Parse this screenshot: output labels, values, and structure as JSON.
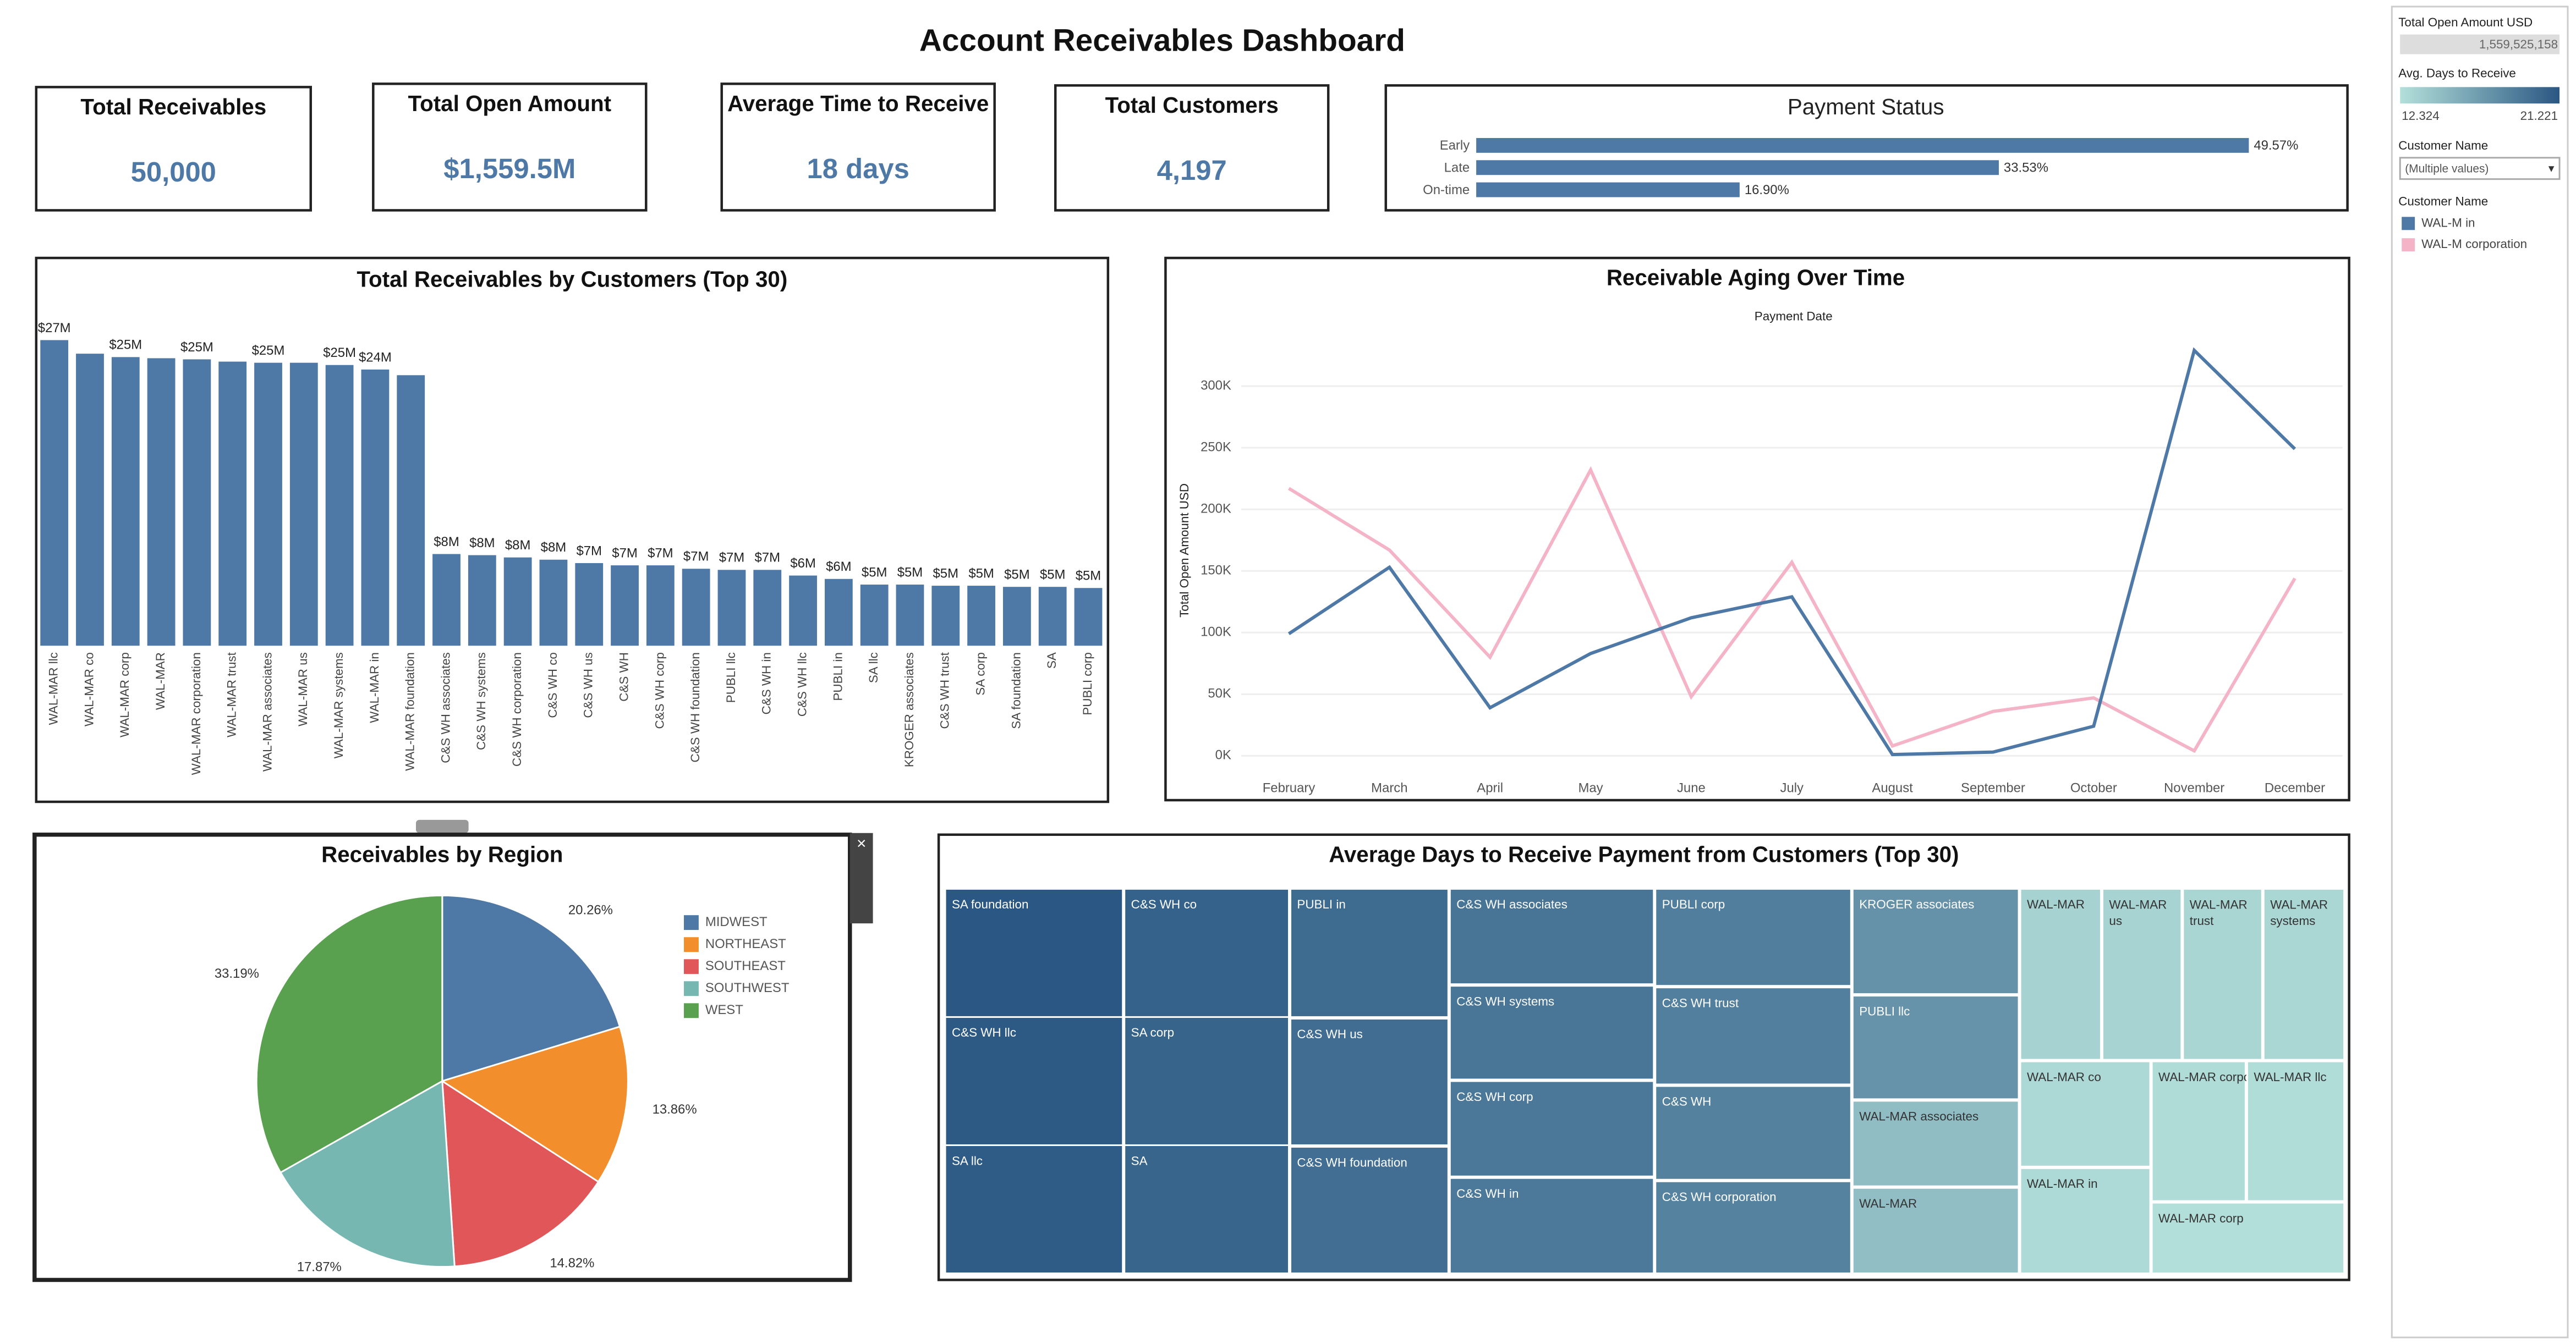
{
  "title": "Account Receivables Dashboard",
  "kpis": [
    {
      "label": "Total Receivables",
      "value": "50,000"
    },
    {
      "label": "Total Open Amount",
      "value": "$1,559.5M"
    },
    {
      "label": "Average Time to Receive",
      "value": "18 days"
    },
    {
      "label": "Total Customers",
      "value": "4,197"
    }
  ],
  "side_panel": {
    "open_amount": {
      "title": "Total Open Amount USD",
      "value": "1,559,525,158"
    },
    "days_title": "Avg. Days to Receive",
    "filter": {
      "title": "Customer Name",
      "value": "(Multiple values)"
    },
    "legend_title": "Customer Name"
  },
  "chart_data": [
    {
      "type": "bar",
      "orientation": "horizontal",
      "title": "Payment Status",
      "color": "#4e79a7",
      "categories": [
        "Early",
        "Late",
        "On-time"
      ],
      "values": [
        49.57,
        33.53,
        16.9
      ],
      "value_labels": [
        "49.57%",
        "33.53%",
        "16.90%"
      ]
    },
    {
      "type": "bar",
      "orientation": "vertical",
      "title": "Total Receivables by Customers (Top 30)",
      "color": "#4e79a7",
      "categories": [
        "WAL-MAR llc",
        "WAL-MAR co",
        "WAL-MAR corp",
        "WAL-MAR",
        "WAL-MAR corporation",
        "WAL-MAR trust",
        "WAL-MAR associates",
        "WAL-MAR us",
        "WAL-MAR systems",
        "WAL-MAR in",
        "WAL-MAR foundation",
        "C&S WH associates",
        "C&S WH systems",
        "C&S WH corporation",
        "C&S WH co",
        "C&S WH us",
        "C&S WH",
        "C&S WH corp",
        "C&S WH foundation",
        "PUBLI llc",
        "C&S WH in",
        "C&S WH llc",
        "PUBLI in",
        "SA llc",
        "KROGER associates",
        "C&S WH trust",
        "SA corp",
        "SA foundation",
        "SA",
        "PUBLI corp"
      ],
      "values": [
        27.0,
        25.8,
        25.5,
        25.4,
        25.3,
        25.1,
        25.0,
        25.0,
        24.8,
        24.4,
        23.9,
        8.1,
        8.0,
        7.8,
        7.6,
        7.3,
        7.1,
        7.1,
        6.8,
        6.7,
        6.7,
        6.2,
        5.9,
        5.4,
        5.4,
        5.3,
        5.3,
        5.2,
        5.2,
        5.1
      ],
      "value_labels": [
        "$27M",
        null,
        "$25M",
        null,
        "$25M",
        null,
        "$25M",
        null,
        "$25M",
        "$24M",
        null,
        "$8M",
        "$8M",
        "$8M",
        "$8M",
        "$7M",
        "$7M",
        "$7M",
        "$7M",
        "$7M",
        "$7M",
        "$6M",
        "$6M",
        "$5M",
        "$5M",
        "$5M",
        "$5M",
        "$5M",
        "$5M",
        "$5M"
      ]
    },
    {
      "type": "line",
      "title": "Receivable Aging Over Time",
      "subtitle": "Payment Date",
      "y_label": "Total Open Amount USD",
      "categories": [
        "February",
        "March",
        "April",
        "May",
        "June",
        "July",
        "August",
        "September",
        "October",
        "November",
        "December"
      ],
      "series": [
        {
          "name": "WAL-M corporation",
          "color": "#f4b3c6",
          "values": [
            217000,
            167000,
            80000,
            232000,
            48000,
            157000,
            8000,
            36000,
            47000,
            4000,
            144000
          ]
        },
        {
          "name": "WAL-M in",
          "color": "#4e79a7",
          "values": [
            99000,
            153000,
            39000,
            83000,
            112000,
            129000,
            1000,
            3000,
            24000,
            329000,
            249000
          ]
        }
      ],
      "ylim": [
        -10000,
        345000
      ],
      "yticks": [
        {
          "value": 0,
          "label": "0K"
        },
        {
          "value": 50000,
          "label": "50K"
        },
        {
          "value": 100000,
          "label": "100K"
        },
        {
          "value": 150000,
          "label": "150K"
        },
        {
          "value": 200000,
          "label": "200K"
        },
        {
          "value": 250000,
          "label": "250K"
        },
        {
          "value": 300000,
          "label": "300K"
        }
      ],
      "grid": true
    },
    {
      "type": "pie",
      "title": "Receivables by Region",
      "categories": [
        "MIDWEST",
        "NORTHEAST",
        "SOUTHEAST",
        "SOUTHWEST",
        "WEST"
      ],
      "values": [
        20.26,
        13.86,
        14.82,
        17.87,
        33.19
      ],
      "value_labels": [
        "20.26%",
        "13.86%",
        "14.82%",
        "17.87%",
        "33.19%"
      ],
      "colors": [
        "#4e79a7",
        "#f28e2b",
        "#e15759",
        "#76b7b2",
        "#59a14f"
      ]
    },
    {
      "type": "treemap",
      "title": "Average Days to Receive Payment from Customers (Top 30)",
      "categories": [
        "SA foundation",
        "C&S WH llc",
        "SA llc",
        "C&S WH co",
        "SA corp",
        "SA",
        "PUBLI in",
        "C&S WH us",
        "C&S WH foundation",
        "C&S WH associates",
        "C&S WH systems",
        "C&S WH corp",
        "C&S WH in",
        "PUBLI corp",
        "C&S WH trust",
        "C&S WH",
        "C&S WH corporation",
        "KROGER associates",
        "PUBLI llc",
        "WAL-MAR associates",
        "WAL-MAR",
        "WAL-MAR",
        "WAL-MAR us",
        "WAL-MAR trust",
        "WAL-MAR systems",
        "WAL-MAR co",
        "WAL-MAR in",
        "WAL-MAR corporation",
        "WAL-MAR llc",
        "WAL-MAR corp"
      ],
      "values": [
        21.2,
        21.0,
        20.9,
        20.5,
        20.4,
        20.3,
        19.9,
        19.8,
        19.7,
        19.3,
        19.2,
        19.1,
        19.0,
        18.7,
        18.6,
        18.5,
        18.4,
        17.4,
        17.3,
        14.6,
        14.5,
        13.2,
        13.1,
        13.0,
        12.9,
        12.8,
        12.7,
        12.6,
        12.5,
        12.4
      ],
      "colorlim": [
        12.324,
        21.221
      ],
      "color_range": [
        "#b3e0da",
        "#2a5783"
      ]
    }
  ]
}
